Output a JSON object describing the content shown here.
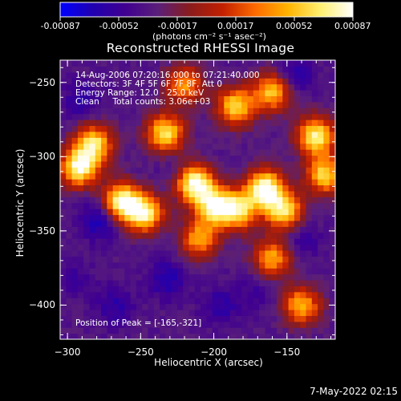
{
  "chart_data": {
    "type": "heatmap",
    "title": "Reconstructed RHESSI Image",
    "xlabel": "Heliocentric X (arcsec)",
    "ylabel": "Heliocentric Y (arcsec)",
    "xlim": [
      -305,
      -117
    ],
    "ylim": [
      -423,
      -235
    ],
    "x_ticks": [
      -300,
      -250,
      -200,
      -150
    ],
    "y_ticks": [
      -250,
      -300,
      -350,
      -400
    ],
    "colorbar": {
      "range": [
        -0.00087,
        0.00087
      ],
      "tick_labels": [
        "-0.00087",
        "-0.00052",
        "-0.00017",
        "0.00017",
        "0.00052",
        "0.00087"
      ],
      "unit_label": "(photons cm⁻² s⁻¹ asec⁻²)",
      "colors": [
        "#0000ff",
        "#2000b0",
        "#400090",
        "#5a1f7a",
        "#8a1c1c",
        "#c22000",
        "#ff6a00",
        "#ffb400",
        "#ffef70",
        "#ffffff"
      ]
    },
    "peak_position": [
      -165,
      -321
    ],
    "hot_spots": [
      {
        "x": -292,
        "y": -307,
        "value": 0.00078
      },
      {
        "x": -282,
        "y": -291,
        "value": 0.00065
      },
      {
        "x": -263,
        "y": -330,
        "value": 0.00082
      },
      {
        "x": -247,
        "y": -338,
        "value": 0.0007
      },
      {
        "x": -233,
        "y": -284,
        "value": 0.00068
      },
      {
        "x": -213,
        "y": -318,
        "value": 0.00086
      },
      {
        "x": -199,
        "y": -333,
        "value": 0.00072
      },
      {
        "x": -183,
        "y": -336,
        "value": 0.0006
      },
      {
        "x": -165,
        "y": -321,
        "value": 0.00087
      },
      {
        "x": -152,
        "y": -336,
        "value": 0.00065
      },
      {
        "x": -185,
        "y": -266,
        "value": 0.00062
      },
      {
        "x": -160,
        "y": -256,
        "value": 0.00055
      },
      {
        "x": -130,
        "y": -286,
        "value": 0.00075
      },
      {
        "x": -124,
        "y": -312,
        "value": 0.0006
      },
      {
        "x": -210,
        "y": -355,
        "value": 0.00045
      },
      {
        "x": -160,
        "y": -368,
        "value": 0.00045
      },
      {
        "x": -140,
        "y": -400,
        "value": 0.0005
      },
      {
        "x": -220,
        "y": -251,
        "value": 0.0004
      }
    ],
    "cold_spots": [
      {
        "x": -290,
        "y": -262,
        "value": -0.0006
      },
      {
        "x": -278,
        "y": -342,
        "value": -0.00075
      },
      {
        "x": -295,
        "y": -382,
        "value": -0.0005
      },
      {
        "x": -232,
        "y": -382,
        "value": -0.00065
      },
      {
        "x": -195,
        "y": -400,
        "value": -0.0006
      },
      {
        "x": -170,
        "y": -391,
        "value": -0.0005
      },
      {
        "x": -140,
        "y": -356,
        "value": -0.00055
      },
      {
        "x": -145,
        "y": -245,
        "value": -0.00065
      },
      {
        "x": -228,
        "y": -310,
        "value": -0.00045
      },
      {
        "x": -268,
        "y": -400,
        "value": -0.0006
      }
    ]
  },
  "annotations": {
    "time_range": "14-Aug-2006 07:20:16.000 to 07:21:40.000",
    "detectors": "Detectors: 3F 4F 5F 6F 7F 8F, Att 0",
    "energy_range": "Energy Range: 12.0 - 25.0 keV",
    "clean_counts": "Clean     Total counts: 3.06e+03",
    "peak_position": "Position of Peak = [-165,-321]"
  },
  "footer": {
    "timestamp": "7-May-2022 02:15"
  }
}
